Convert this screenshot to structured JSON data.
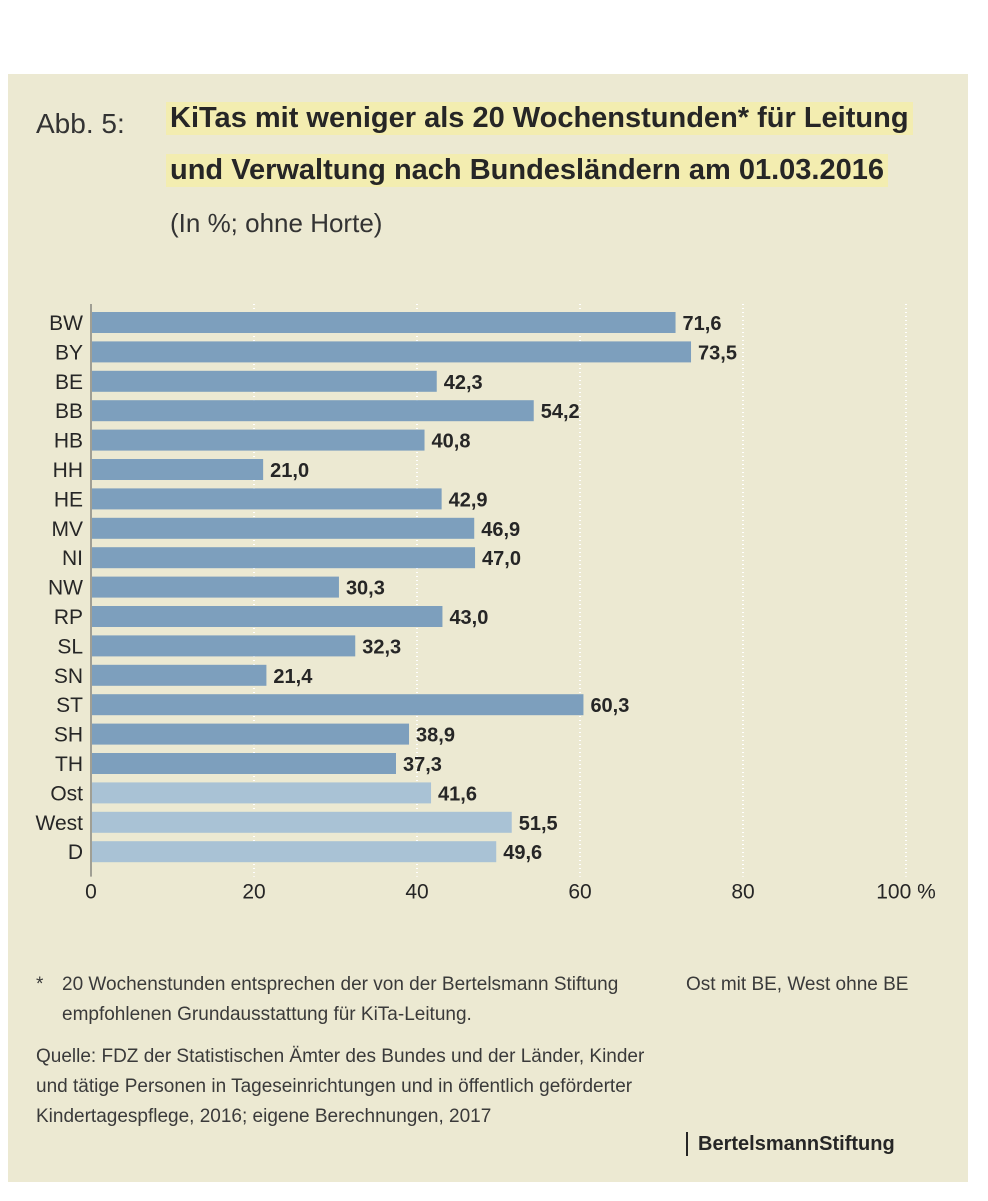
{
  "figure_label": "Abb. 5:",
  "title_line1": "KiTas mit weniger als 20 Wochenstunden* für Leitung",
  "title_line2": "und Verwaltung nach Bundesländern am 01.03.2016",
  "subtitle": "(In %; ohne Horte)",
  "footnote_marker": "*",
  "footnote": "20 Wochenstunden entsprechen der von der Bertelsmann Stiftung empfohlenen Grundausstattung für KiTa-Leitung.",
  "note": "Ost mit BE, West ohne BE",
  "source": "Quelle: FDZ der Statistischen Ämter des Bundes und der Länder, Kinder und tätige Personen in Tageseinrichtungen und in öffentlich geförderter Kindertagespflege, 2016; eigene Berechnungen, 2017",
  "brand": "BertelsmannStiftung",
  "colors": {
    "background": "#ece9d2",
    "bar_states": "#7d9fbd",
    "bar_aggregates": "#a9c2d5",
    "highlight": "#f3edb0"
  },
  "chart_data": {
    "type": "bar",
    "orientation": "horizontal",
    "categories": [
      "BW",
      "BY",
      "BE",
      "BB",
      "HB",
      "HH",
      "HE",
      "MV",
      "NI",
      "NW",
      "RP",
      "SL",
      "SN",
      "ST",
      "SH",
      "TH",
      "Ost",
      "West",
      "D"
    ],
    "values": [
      71.6,
      73.5,
      42.3,
      54.2,
      40.8,
      21.0,
      42.9,
      46.9,
      47.0,
      30.3,
      43.0,
      32.3,
      21.4,
      60.3,
      38.9,
      37.3,
      41.6,
      51.5,
      49.6
    ],
    "value_labels": [
      "71,6",
      "73,5",
      "42,3",
      "54,2",
      "40,8",
      "21,0",
      "42,9",
      "46,9",
      "47,0",
      "30,3",
      "43,0",
      "32,3",
      "21,4",
      "60,3",
      "38,9",
      "37,3",
      "41,6",
      "51,5",
      "49,6"
    ],
    "aggregate_categories": [
      "Ost",
      "West",
      "D"
    ],
    "xlim": [
      0,
      100
    ],
    "xticks": [
      0,
      20,
      40,
      60,
      80,
      100
    ],
    "xtick_labels": [
      "0",
      "20",
      "40",
      "60",
      "80",
      "100 %"
    ],
    "grid": true
  }
}
